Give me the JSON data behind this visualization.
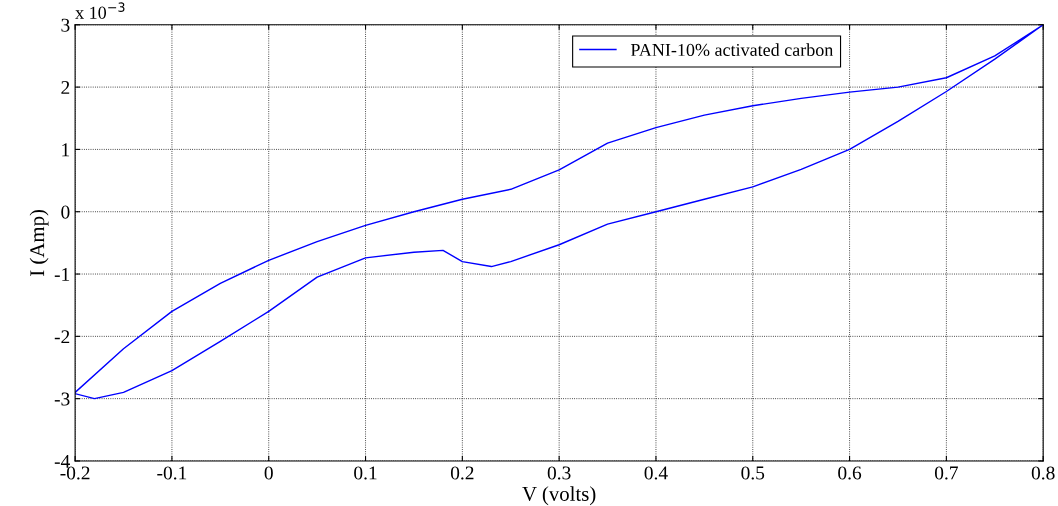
{
  "chart_data": {
    "type": "line",
    "xlabel": "V (volts)",
    "ylabel": "I (Amp)",
    "xlim": [
      -0.2,
      0.8
    ],
    "xticks": [
      -0.2,
      -0.1,
      0,
      0.1,
      0.2,
      0.3,
      0.4,
      0.5,
      0.6,
      0.7,
      0.8
    ],
    "ylim": [
      -4,
      3
    ],
    "yticks": [
      -4,
      -3,
      -2,
      -1,
      0,
      1,
      2,
      3
    ],
    "annotations": [
      "x 10$^{−3}$"
    ],
    "grid": true,
    "legend": "top right",
    "marker": "none",
    "line_style": "solid",
    "series": [
      {
        "name": "PANI-10% activated carbon",
        "color": "#0000ff",
        "x": [
          -0.2,
          -0.15,
          -0.1,
          -0.05,
          0,
          0.05,
          0.1,
          0.15,
          0.2,
          0.25,
          0.3,
          0.35,
          0.4,
          0.45,
          0.5,
          0.55,
          0.6,
          0.65,
          0.7,
          0.75,
          0.8,
          0.75,
          0.7,
          0.65,
          0.6,
          0.55,
          0.5,
          0.45,
          0.4,
          0.35,
          0.3,
          0.25,
          0.23,
          0.2,
          0.18,
          0.15,
          0.1,
          0.05,
          0,
          -0.05,
          -0.1,
          -0.15,
          -0.18,
          -0.2
        ],
        "values": [
          -2.9,
          -2.2,
          -1.6,
          -1.15,
          -0.78,
          -0.48,
          -0.22,
          0.0,
          0.2,
          0.36,
          0.67,
          1.1,
          1.35,
          1.55,
          1.7,
          1.82,
          1.92,
          2.0,
          2.15,
          2.5,
          3.0,
          2.45,
          1.93,
          1.45,
          1.0,
          0.68,
          0.4,
          0.2,
          0.0,
          -0.2,
          -0.53,
          -0.8,
          -0.88,
          -0.8,
          -0.62,
          -0.65,
          -0.74,
          -1.05,
          -1.6,
          -2.08,
          -2.55,
          -2.9,
          -3.0,
          -2.92
        ]
      }
    ]
  }
}
